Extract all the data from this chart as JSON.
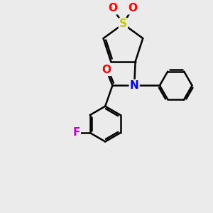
{
  "background_color": "#ebebeb",
  "atom_colors": {
    "S": "#c8c800",
    "O": "#ff0000",
    "N": "#0000ff",
    "F": "#cc00cc",
    "C": "#000000"
  },
  "bond_color": "#000000",
  "bond_width": 1.8,
  "figsize": [
    3.0,
    3.0
  ],
  "dpi": 100
}
